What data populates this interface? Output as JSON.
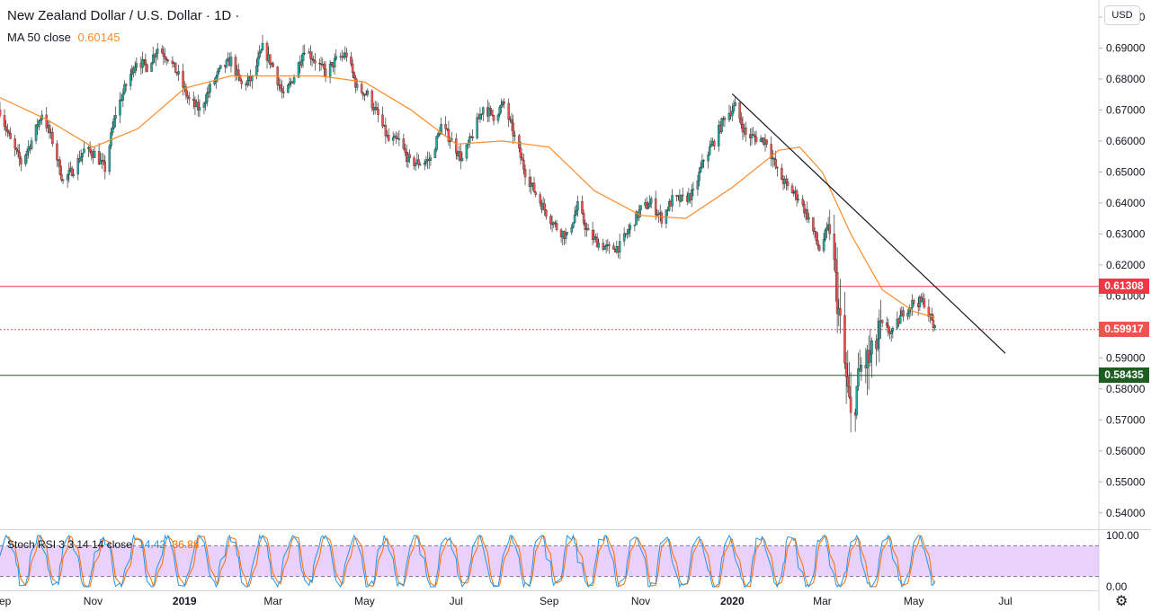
{
  "header": {
    "title": "New Zealand Dollar / U.S. Dollar · 1D ·",
    "ma_label": "MA 50 close",
    "ma_value": "0.60145",
    "rsi_label": "Stoch RSI 3 3 14 14 close",
    "rsi_k": "14.42",
    "rsi_d": "36.88",
    "currency_button": "USD"
  },
  "price_tags": [
    {
      "label": "0.61308",
      "price": 0.61308,
      "color": "#f23645",
      "line": "solid"
    },
    {
      "label": "0.59917",
      "price": 0.59917,
      "color": "#ef5350",
      "line": "dotted"
    },
    {
      "label": "0.58435",
      "price": 0.58435,
      "color": "#1b5e20",
      "line": "solid"
    }
  ],
  "colors": {
    "up": "#26a69a",
    "down": "#ef5350",
    "ma": "#ff8b26",
    "stoch_k": "#2196f3",
    "stoch_d": "#ff6d00",
    "stoch_band": "#e1bdfa",
    "trend": "#131722"
  },
  "chart_data": {
    "type": "candlestick",
    "symbol": "New Zealand Dollar / U.S. Dollar",
    "interval": "1D",
    "y_axis": {
      "min": 0.535,
      "max": 0.7055,
      "ticks": [
        "0.70000",
        "0.69000",
        "0.68000",
        "0.67000",
        "0.66000",
        "0.65000",
        "0.64000",
        "0.63000",
        "0.62000",
        "0.61000",
        "0.60000",
        "0.59000",
        "0.58000",
        "0.57000",
        "0.56000",
        "0.55000",
        "0.54000"
      ]
    },
    "x_axis": {
      "labels": [
        {
          "text": "Sep",
          "date": "2018-09"
        },
        {
          "text": "Nov",
          "date": "2018-11"
        },
        {
          "text": "2019",
          "date": "2019-01",
          "bold": true
        },
        {
          "text": "Mar",
          "date": "2019-03"
        },
        {
          "text": "May",
          "date": "2019-05"
        },
        {
          "text": "Jul",
          "date": "2019-07"
        },
        {
          "text": "Sep",
          "date": "2019-09"
        },
        {
          "text": "Nov",
          "date": "2019-11"
        },
        {
          "text": "2020",
          "date": "2020-01",
          "bold": true
        },
        {
          "text": "Mar",
          "date": "2020-03"
        },
        {
          "text": "May",
          "date": "2020-05"
        },
        {
          "text": "Jul",
          "date": "2020-07"
        }
      ]
    },
    "close_path": [
      [
        "2018-08-31",
        0.67
      ],
      [
        "2018-09-07",
        0.66
      ],
      [
        "2018-09-14",
        0.653
      ],
      [
        "2018-09-21",
        0.66
      ],
      [
        "2018-09-28",
        0.669
      ],
      [
        "2018-10-05",
        0.66
      ],
      [
        "2018-10-12",
        0.647
      ],
      [
        "2018-10-19",
        0.651
      ],
      [
        "2018-10-26",
        0.657
      ],
      [
        "2018-11-02",
        0.656
      ],
      [
        "2018-11-09",
        0.651
      ],
      [
        "2018-11-16",
        0.669
      ],
      [
        "2018-11-23",
        0.678
      ],
      [
        "2018-11-30",
        0.686
      ],
      [
        "2018-12-07",
        0.684
      ],
      [
        "2018-12-14",
        0.69
      ],
      [
        "2018-12-21",
        0.687
      ],
      [
        "2018-12-28",
        0.681
      ],
      [
        "2019-01-04",
        0.673
      ],
      [
        "2019-01-11",
        0.67
      ],
      [
        "2019-01-18",
        0.677
      ],
      [
        "2019-01-25",
        0.683
      ],
      [
        "2019-02-01",
        0.686
      ],
      [
        "2019-02-08",
        0.678
      ],
      [
        "2019-02-15",
        0.68
      ],
      [
        "2019-02-22",
        0.69
      ],
      [
        "2019-03-01",
        0.684
      ],
      [
        "2019-03-08",
        0.674
      ],
      [
        "2019-03-15",
        0.681
      ],
      [
        "2019-03-22",
        0.69
      ],
      [
        "2019-03-29",
        0.686
      ],
      [
        "2019-04-05",
        0.682
      ],
      [
        "2019-04-12",
        0.686
      ],
      [
        "2019-04-19",
        0.688
      ],
      [
        "2019-04-26",
        0.677
      ],
      [
        "2019-05-03",
        0.675
      ],
      [
        "2019-05-10",
        0.668
      ],
      [
        "2019-05-17",
        0.66
      ],
      [
        "2019-05-24",
        0.66
      ],
      [
        "2019-05-31",
        0.653
      ],
      [
        "2019-06-07",
        0.653
      ],
      [
        "2019-06-14",
        0.654
      ],
      [
        "2019-06-21",
        0.665
      ],
      [
        "2019-06-28",
        0.66
      ],
      [
        "2019-07-05",
        0.654
      ],
      [
        "2019-07-12",
        0.662
      ],
      [
        "2019-07-19",
        0.671
      ],
      [
        "2019-07-26",
        0.668
      ],
      [
        "2019-08-02",
        0.672
      ],
      [
        "2019-08-09",
        0.661
      ],
      [
        "2019-08-16",
        0.65
      ],
      [
        "2019-08-23",
        0.643
      ],
      [
        "2019-08-30",
        0.637
      ],
      [
        "2019-09-06",
        0.632
      ],
      [
        "2019-09-13",
        0.629
      ],
      [
        "2019-09-20",
        0.639
      ],
      [
        "2019-09-27",
        0.63
      ],
      [
        "2019-10-04",
        0.627
      ],
      [
        "2019-10-11",
        0.625
      ],
      [
        "2019-10-18",
        0.626
      ],
      [
        "2019-10-25",
        0.632
      ],
      [
        "2019-11-01",
        0.638
      ],
      [
        "2019-11-08",
        0.64
      ],
      [
        "2019-11-15",
        0.635
      ],
      [
        "2019-11-22",
        0.641
      ],
      [
        "2019-11-29",
        0.641
      ],
      [
        "2019-12-06",
        0.643
      ],
      [
        "2019-12-13",
        0.654
      ],
      [
        "2019-12-20",
        0.66
      ],
      [
        "2019-12-27",
        0.668
      ],
      [
        "2020-01-03",
        0.671
      ],
      [
        "2020-01-10",
        0.662
      ],
      [
        "2020-01-17",
        0.661
      ],
      [
        "2020-01-24",
        0.66
      ],
      [
        "2020-01-31",
        0.65
      ],
      [
        "2020-02-07",
        0.645
      ],
      [
        "2020-02-14",
        0.642
      ],
      [
        "2020-02-21",
        0.635
      ],
      [
        "2020-02-28",
        0.625
      ],
      [
        "2020-03-06",
        0.633
      ],
      [
        "2020-03-13",
        0.6
      ],
      [
        "2020-03-20",
        0.57
      ],
      [
        "2020-03-27",
        0.587
      ],
      [
        "2020-04-03",
        0.59
      ],
      [
        "2020-04-10",
        0.6
      ],
      [
        "2020-04-17",
        0.598
      ],
      [
        "2020-04-24",
        0.605
      ],
      [
        "2020-05-01",
        0.608
      ],
      [
        "2020-05-08",
        0.608
      ],
      [
        "2020-05-15",
        0.599
      ]
    ],
    "moving_average": {
      "name": "MA 50 close",
      "path": [
        [
          "2018-08-31",
          0.674
        ],
        [
          "2018-10-01",
          0.667
        ],
        [
          "2018-11-01",
          0.658
        ],
        [
          "2018-12-01",
          0.664
        ],
        [
          "2019-01-01",
          0.677
        ],
        [
          "2019-02-01",
          0.681
        ],
        [
          "2019-03-01",
          0.681
        ],
        [
          "2019-04-01",
          0.681
        ],
        [
          "2019-05-01",
          0.679
        ],
        [
          "2019-06-01",
          0.67
        ],
        [
          "2019-07-01",
          0.659
        ],
        [
          "2019-08-01",
          0.66
        ],
        [
          "2019-09-01",
          0.658
        ],
        [
          "2019-10-01",
          0.644
        ],
        [
          "2019-11-01",
          0.636
        ],
        [
          "2019-12-01",
          0.635
        ],
        [
          "2020-01-01",
          0.645
        ],
        [
          "2020-02-01",
          0.657
        ],
        [
          "2020-02-15",
          0.658
        ],
        [
          "2020-03-01",
          0.65
        ],
        [
          "2020-03-20",
          0.63
        ],
        [
          "2020-04-10",
          0.612
        ],
        [
          "2020-05-01",
          0.605
        ],
        [
          "2020-05-15",
          0.603
        ]
      ]
    },
    "trendline": {
      "start": [
        "2020-01-01",
        0.6752
      ],
      "end": [
        "2020-07-01",
        0.5915
      ]
    },
    "stoch_rsi": {
      "label": "Stoch RSI 3 3 14 14 close",
      "k_last": 14.42,
      "d_last": 36.88,
      "upper": 80,
      "lower": 20,
      "ticks": [
        "100.00",
        "0.00"
      ]
    }
  }
}
